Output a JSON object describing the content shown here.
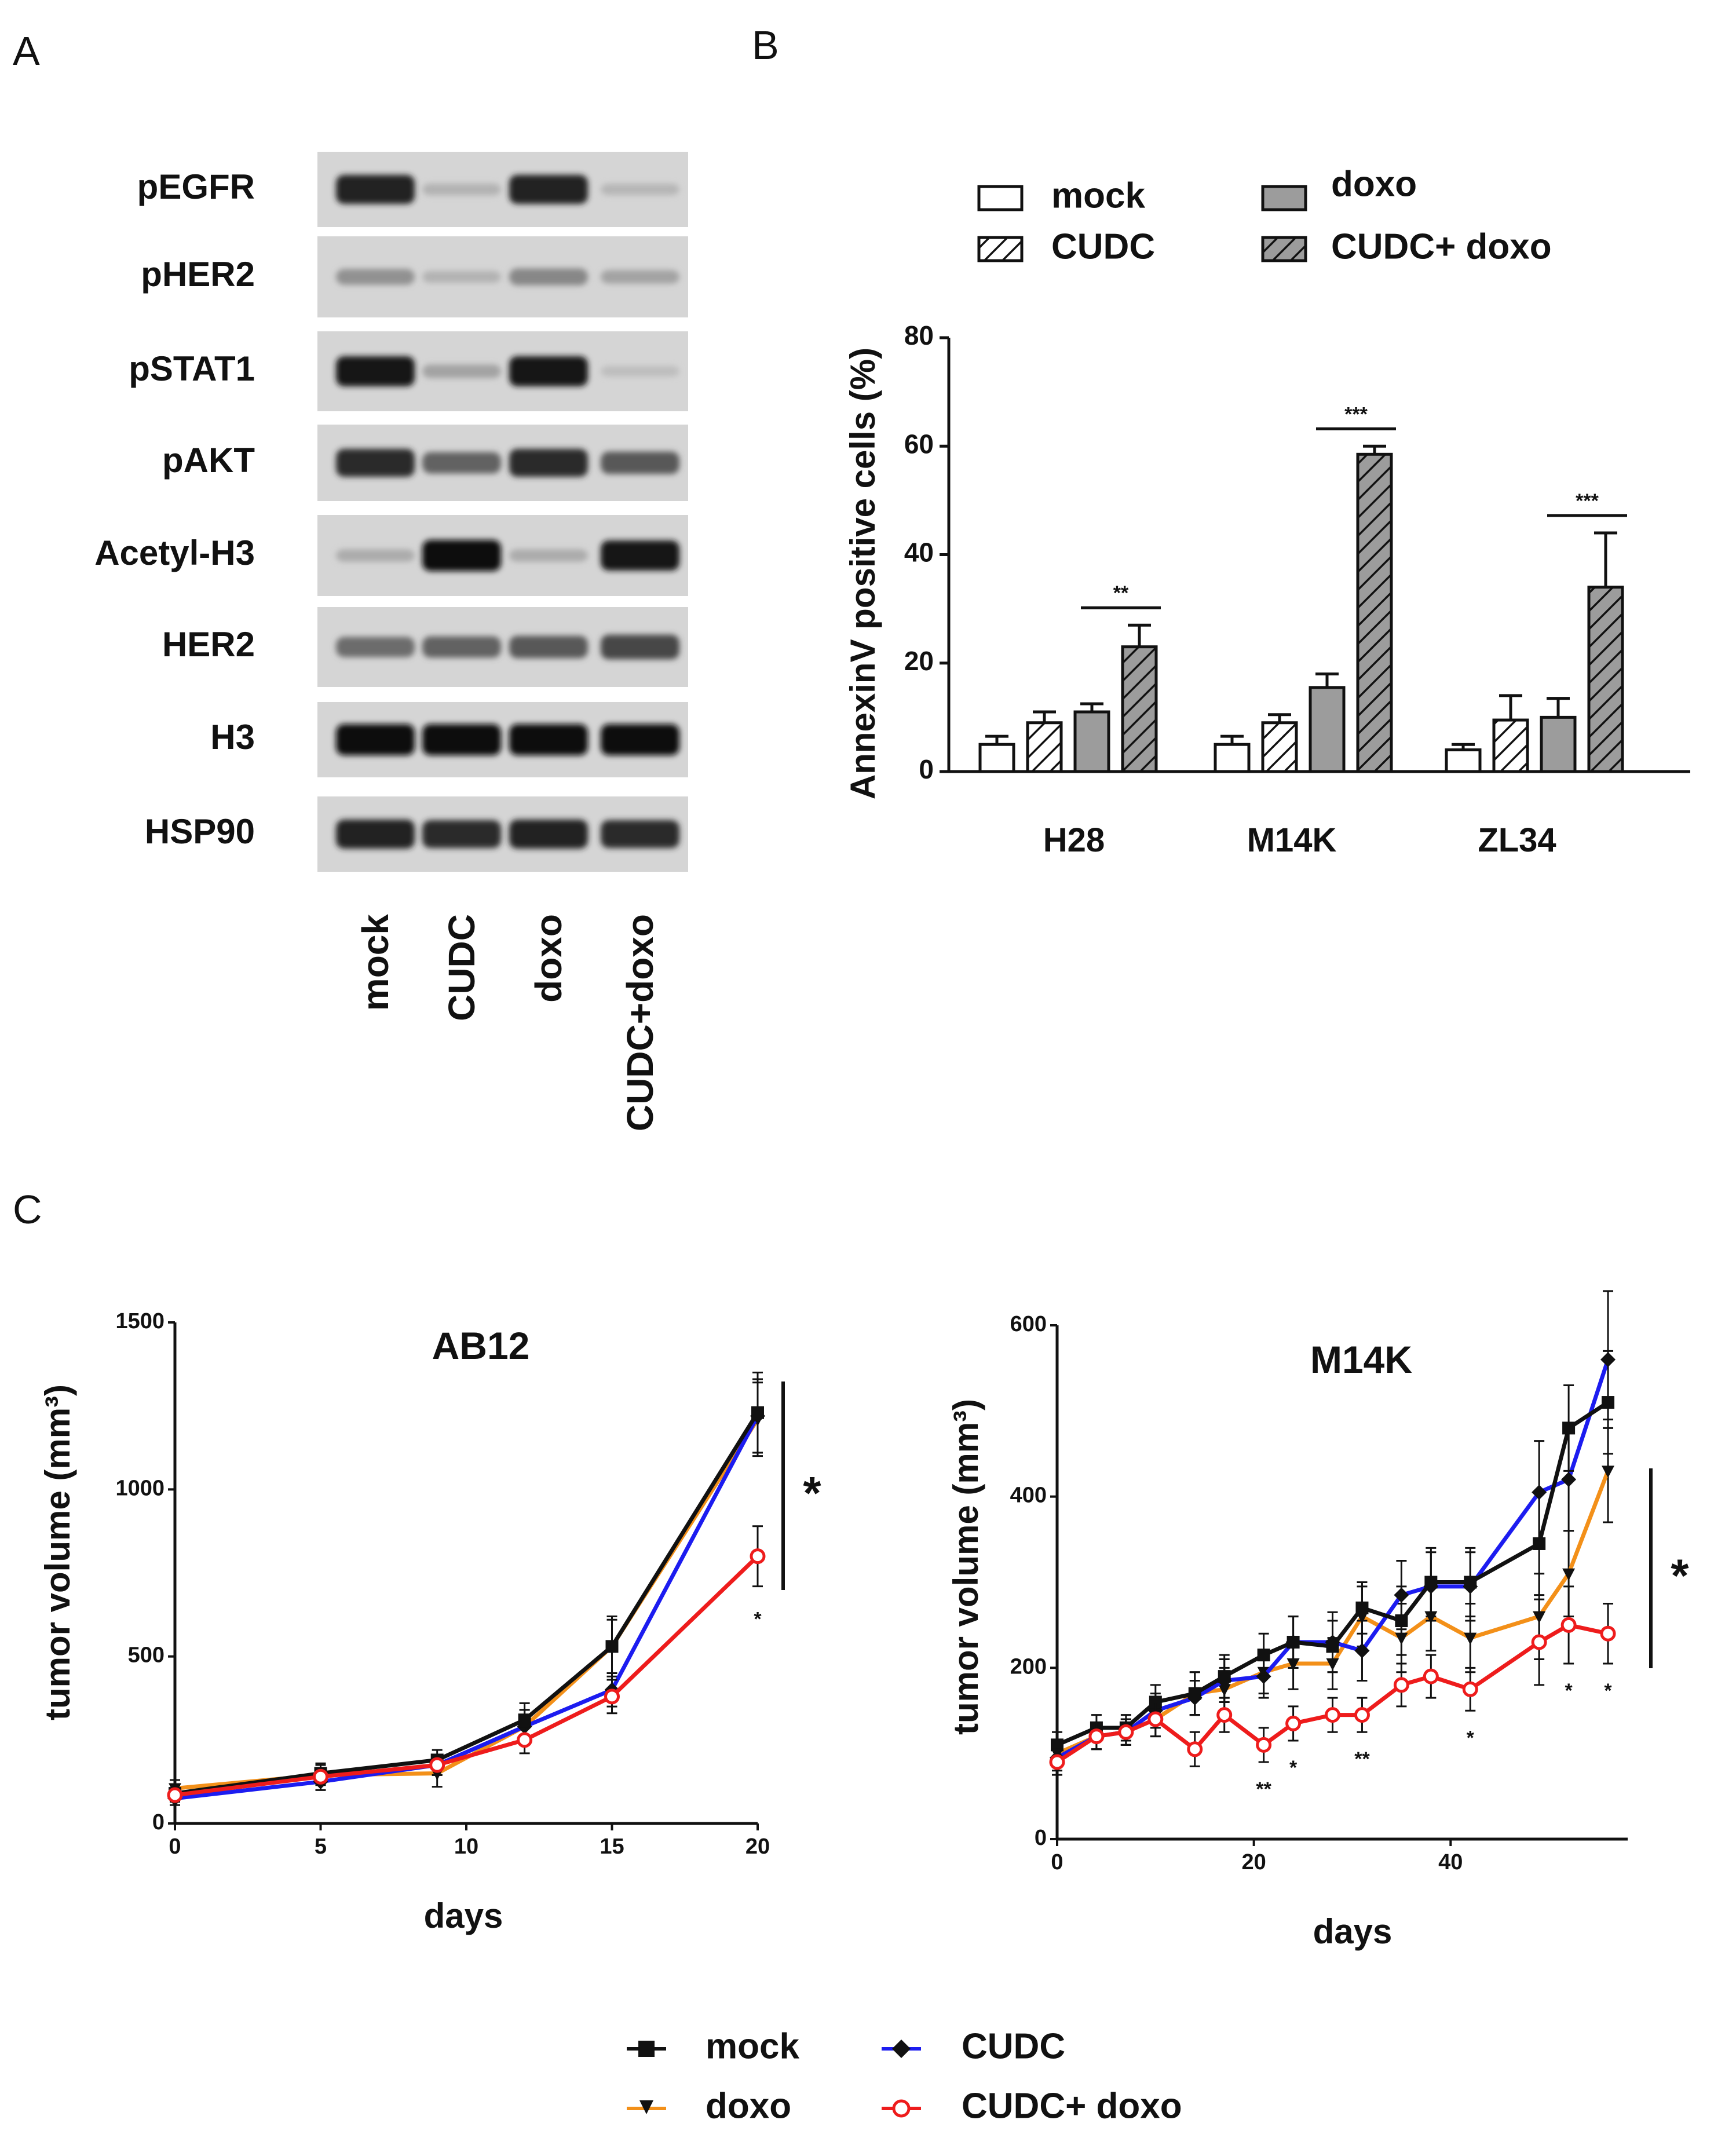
{
  "panels": {
    "a": "A",
    "b": "B",
    "c": "C"
  },
  "colors": {
    "mock": "#111111",
    "cudc": "#1c1cf0",
    "doxo": "#f39019",
    "combo": "#ee1c1c",
    "bar_gray": "#9c9c9c",
    "bar_dark": "#7a7a7a"
  },
  "blot": {
    "rows": [
      "pEGFR",
      "pHER2",
      "pSTAT1",
      "pAKT",
      "Acetyl-H3",
      "HER2",
      "H3",
      "HSP90"
    ],
    "lanes": [
      "mock",
      "CUDC",
      "doxo",
      "CUDC+doxo"
    ],
    "intensity": [
      [
        0.9,
        0.12,
        0.9,
        0.1
      ],
      [
        0.3,
        0.12,
        0.35,
        0.2
      ],
      [
        0.95,
        0.2,
        0.95,
        0.06
      ],
      [
        0.85,
        0.55,
        0.85,
        0.6
      ],
      [
        0.15,
        1.0,
        0.15,
        0.95
      ],
      [
        0.5,
        0.55,
        0.6,
        0.7
      ],
      [
        1.0,
        1.0,
        1.0,
        1.0
      ],
      [
        0.9,
        0.85,
        0.9,
        0.85
      ]
    ]
  },
  "chart_data": [
    {
      "type": "bar",
      "title": "",
      "xlabel": "",
      "ylabel": "AnnexinV positive cells (%)",
      "ylim": [
        0,
        80
      ],
      "yticks": [
        "0",
        "20",
        "40",
        "60",
        "80"
      ],
      "categories": [
        "H28",
        "M14K",
        "ZL34"
      ],
      "series": [
        {
          "name": "mock",
          "values": [
            5,
            5,
            4
          ],
          "errors": [
            1.5,
            1.5,
            1
          ]
        },
        {
          "name": "CUDC",
          "values": [
            9,
            9,
            9.5
          ],
          "errors": [
            2,
            1.5,
            4.5
          ]
        },
        {
          "name": "doxo",
          "values": [
            11,
            15.5,
            10
          ],
          "errors": [
            1.5,
            2.5,
            3.5
          ]
        },
        {
          "name": "CUDC+ doxo",
          "values": [
            23,
            58.5,
            34
          ],
          "errors": [
            4,
            1.5,
            10
          ]
        }
      ],
      "significance": [
        {
          "category": "H28",
          "label": "**"
        },
        {
          "category": "M14K",
          "label": "***"
        },
        {
          "category": "ZL34",
          "label": "***"
        }
      ],
      "legend": [
        "mock",
        "CUDC",
        "doxo",
        "CUDC+ doxo"
      ]
    },
    {
      "type": "line",
      "title": "AB12",
      "xlabel": "days",
      "ylabel": "tumor volume (mm³)",
      "xlim": [
        0,
        20
      ],
      "ylim": [
        0,
        1500
      ],
      "xticks": [
        "0",
        "5",
        "10",
        "15",
        "20"
      ],
      "yticks": [
        "0",
        "500",
        "1000",
        "1500"
      ],
      "x": [
        0,
        5,
        9,
        12,
        15,
        20
      ],
      "series": [
        {
          "name": "mock",
          "values": [
            90,
            150,
            190,
            310,
            530,
            1230
          ],
          "errors": [
            25,
            30,
            30,
            50,
            80,
            120
          ]
        },
        {
          "name": "CUDC",
          "values": [
            75,
            125,
            175,
            290,
            400,
            1220
          ],
          "errors": [
            20,
            25,
            30,
            50,
            50,
            110
          ]
        },
        {
          "name": "doxo",
          "values": [
            105,
            145,
            150,
            290,
            530,
            1210
          ],
          "errors": [
            25,
            30,
            40,
            50,
            90,
            110
          ]
        },
        {
          "name": "CUDC+ doxo",
          "values": [
            85,
            140,
            175,
            250,
            380,
            800
          ],
          "errors": [
            20,
            25,
            30,
            40,
            50,
            90
          ]
        }
      ],
      "annotations": [
        {
          "x": 20,
          "label": "*"
        }
      ],
      "bracket_label": "*"
    },
    {
      "type": "line",
      "title": "M14K",
      "xlabel": "days",
      "ylabel": "tumor volume (mm³)",
      "xlim": [
        0,
        58
      ],
      "ylim": [
        0,
        600
      ],
      "xticks": [
        "0",
        "20",
        "40"
      ],
      "yticks": [
        "0",
        "200",
        "400",
        "600"
      ],
      "x": [
        0,
        4,
        7,
        10,
        14,
        17,
        21,
        24,
        28,
        31,
        35,
        38,
        42,
        49,
        52,
        56
      ],
      "series": [
        {
          "name": "mock",
          "values": [
            110,
            130,
            130,
            160,
            170,
            190,
            215,
            230,
            225,
            270,
            255,
            300,
            300,
            345,
            480,
            510
          ],
          "errors": [
            15,
            15,
            15,
            20,
            25,
            25,
            25,
            30,
            30,
            30,
            40,
            40,
            40,
            60,
            50,
            60
          ]
        },
        {
          "name": "CUDC",
          "values": [
            95,
            120,
            125,
            150,
            165,
            185,
            190,
            230,
            230,
            220,
            285,
            295,
            295,
            405,
            420,
            560
          ],
          "errors": [
            15,
            15,
            15,
            20,
            20,
            25,
            25,
            30,
            35,
            35,
            40,
            40,
            40,
            60,
            60,
            80
          ]
        },
        {
          "name": "doxo",
          "values": [
            100,
            120,
            125,
            140,
            170,
            175,
            195,
            205,
            205,
            260,
            235,
            260,
            235,
            260,
            310,
            430
          ],
          "errors": [
            15,
            15,
            15,
            20,
            25,
            25,
            25,
            30,
            30,
            35,
            40,
            40,
            40,
            50,
            50,
            60
          ]
        },
        {
          "name": "CUDC+ doxo",
          "values": [
            90,
            120,
            125,
            140,
            105,
            145,
            110,
            135,
            145,
            145,
            180,
            190,
            175,
            230,
            250,
            240
          ],
          "errors": [
            15,
            15,
            15,
            20,
            20,
            20,
            20,
            20,
            20,
            20,
            25,
            25,
            25,
            50,
            45,
            35
          ]
        }
      ],
      "annotations": [
        {
          "x": 21,
          "label": "**"
        },
        {
          "x": 24,
          "label": "*"
        },
        {
          "x": 31,
          "label": "**"
        },
        {
          "x": 42,
          "label": "*"
        },
        {
          "x": 52,
          "label": "*"
        },
        {
          "x": 56,
          "label": "*"
        }
      ],
      "bracket_label": "*"
    }
  ],
  "line_legend": [
    "mock",
    "doxo",
    "CUDC",
    "CUDC+ doxo"
  ]
}
